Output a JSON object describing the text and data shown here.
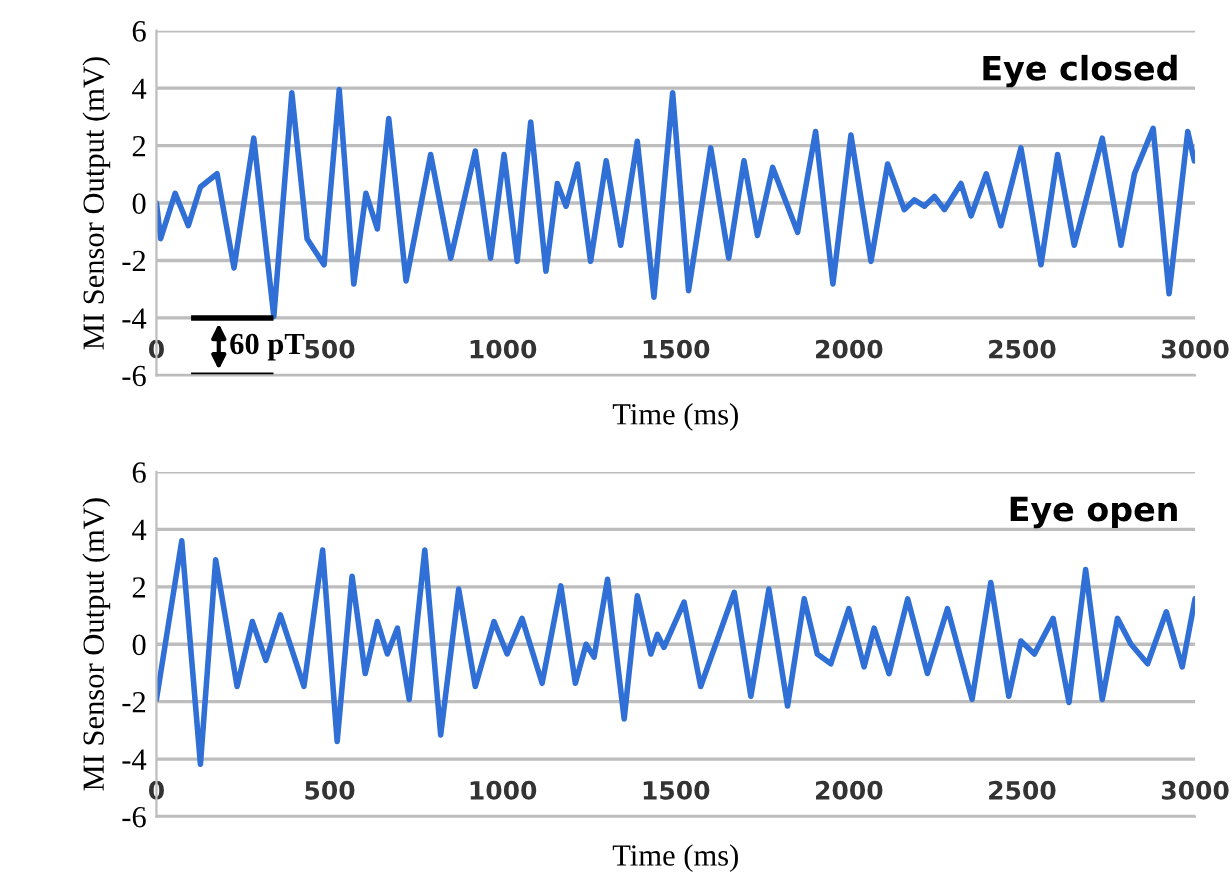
{
  "chart_data": [
    {
      "type": "line",
      "title": "Eye closed",
      "xlabel": "Time (ms)",
      "ylabel": "MI Sensor Output (mV)",
      "xlim": [
        0,
        3000
      ],
      "xticks": [
        0,
        500,
        1000,
        1500,
        2000,
        2500,
        3000
      ],
      "ylim": [
        -6,
        6
      ],
      "yticks": [
        -6,
        -4,
        -2,
        0,
        2,
        4,
        6
      ],
      "grid": "y",
      "annotations": [
        "60 pT"
      ],
      "series": [
        {
          "color": "#2f6fd6",
          "x": [
            0,
            12,
            54,
            92,
            127,
            175,
            224,
            281,
            339,
            391,
            435,
            484,
            528,
            570,
            605,
            638,
            671,
            721,
            792,
            850,
            921,
            965,
            1004,
            1042,
            1081,
            1125,
            1158,
            1183,
            1216,
            1254,
            1299,
            1341,
            1389,
            1437,
            1491,
            1537,
            1601,
            1653,
            1697,
            1736,
            1780,
            1852,
            1904,
            1954,
            2006,
            2064,
            2112,
            2160,
            2189,
            2218,
            2247,
            2276,
            2324,
            2353,
            2397,
            2439,
            2497,
            2555,
            2603,
            2651,
            2732,
            2786,
            2825,
            2879,
            2925,
            2979,
            2998
          ],
          "values": [
            0,
            -1.24,
            0.34,
            -0.79,
            0.56,
            1.02,
            -2.26,
            2.26,
            -3.95,
            3.84,
            -1.24,
            -2.15,
            3.95,
            -2.82,
            0.34,
            -0.9,
            2.94,
            -2.71,
            1.69,
            -1.92,
            1.81,
            -1.92,
            1.69,
            -2.03,
            2.82,
            -2.37,
            0.68,
            -0.11,
            1.36,
            -2.03,
            1.47,
            -1.47,
            2.15,
            -3.28,
            3.84,
            -3.05,
            1.92,
            -1.92,
            1.47,
            -1.13,
            1.24,
            -1.02,
            2.49,
            -2.82,
            2.37,
            -2.03,
            1.36,
            -0.23,
            0.11,
            -0.11,
            0.23,
            -0.23,
            0.68,
            -0.45,
            1.02,
            -0.79,
            1.92,
            -2.15,
            1.69,
            -1.47,
            2.26,
            -1.47,
            1.02,
            2.6,
            -3.16,
            2.49,
            1.47
          ]
        }
      ]
    },
    {
      "type": "line",
      "title": "Eye open",
      "xlabel": "Time (ms)",
      "ylabel": "MI Sensor Output (mV)",
      "xlim": [
        0,
        3000
      ],
      "xticks": [
        0,
        500,
        1000,
        1500,
        2000,
        2500,
        3000
      ],
      "ylim": [
        -6,
        6
      ],
      "yticks": [
        -6,
        -4,
        -2,
        0,
        2,
        4,
        6
      ],
      "grid": "y",
      "series": [
        {
          "color": "#2f6fd6",
          "x": [
            0,
            73,
            127,
            171,
            233,
            277,
            316,
            358,
            426,
            480,
            522,
            565,
            603,
            638,
            667,
            696,
            730,
            775,
            821,
            873,
            921,
            975,
            1013,
            1056,
            1114,
            1168,
            1210,
            1241,
            1264,
            1303,
            1351,
            1389,
            1428,
            1447,
            1466,
            1524,
            1572,
            1669,
            1717,
            1769,
            1823,
            1871,
            1909,
            1948,
            2000,
            2044,
            2073,
            2116,
            2170,
            2227,
            2285,
            2356,
            2410,
            2462,
            2497,
            2536,
            2590,
            2636,
            2684,
            2732,
            2776,
            2815,
            2863,
            2917,
            2963,
            3000
          ],
          "values": [
            -1.92,
            3.6,
            -4.18,
            2.94,
            -1.47,
            0.79,
            -0.56,
            1.02,
            -1.47,
            3.28,
            -3.39,
            2.37,
            -1.02,
            0.79,
            -0.34,
            0.56,
            -1.92,
            3.28,
            -3.16,
            1.92,
            -1.47,
            0.79,
            -0.34,
            0.9,
            -1.36,
            2.03,
            -1.36,
            0,
            -0.45,
            2.26,
            -2.6,
            1.69,
            -0.34,
            0.34,
            -0.11,
            1.47,
            -1.47,
            1.81,
            -1.81,
            1.92,
            -2.15,
            1.58,
            -0.34,
            -0.68,
            1.24,
            -0.79,
            0.56,
            -1.02,
            1.58,
            -1.02,
            1.24,
            -1.92,
            2.15,
            -1.81,
            0.11,
            -0.34,
            0.9,
            -2.03,
            2.6,
            -1.92,
            0.9,
            0,
            -0.68,
            1.13,
            -0.79,
            1.58
          ]
        }
      ]
    }
  ]
}
